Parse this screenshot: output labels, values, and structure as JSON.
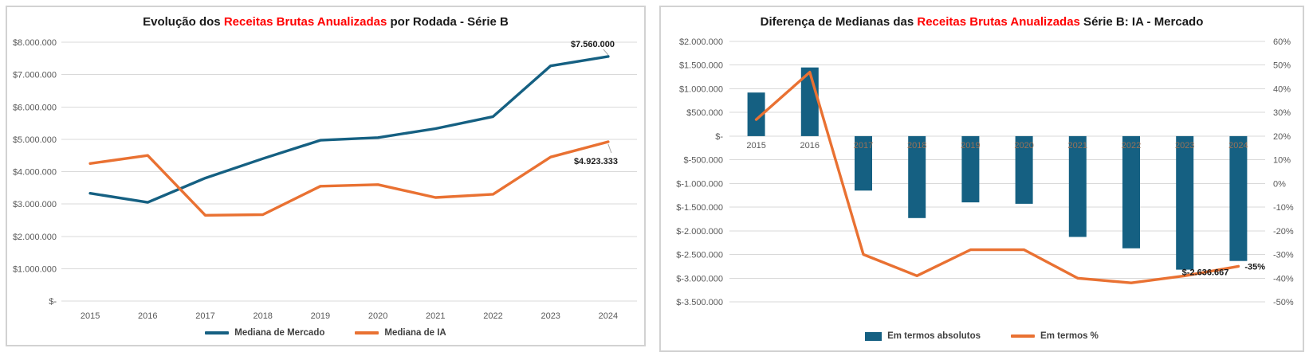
{
  "page": {
    "background": "#ffffff"
  },
  "colors": {
    "series_teal": "#156082",
    "series_orange": "#E97132",
    "title_highlight_red": "#ff0000",
    "title_text": "#1a1a1a",
    "axis_text": "#595959",
    "gridline": "#d9d9d9",
    "panel_border": "#d2d2d2",
    "data_label_text": "#1a1a1a",
    "year_label_over_bar": "#9a7257",
    "leader_line": "#a6a6a6"
  },
  "chart_data": [
    {
      "type": "line",
      "title": {
        "pre": "Evolução dos ",
        "highlight": "Receitas Brutas Anualizadas",
        "post": " por Rodada - Série B"
      },
      "categories": [
        "2015",
        "2016",
        "2017",
        "2018",
        "2019",
        "2020",
        "2021",
        "2022",
        "2023",
        "2024"
      ],
      "series": [
        {
          "name": "Mediana de Mercado",
          "color": "#156082",
          "values": [
            3330000,
            3050000,
            3800000,
            4400000,
            4970000,
            5050000,
            5330000,
            5700000,
            7270000,
            7560000
          ],
          "end_label": "$7.560.000"
        },
        {
          "name": "Mediana de IA",
          "color": "#E97132",
          "values": [
            4250000,
            4500000,
            2650000,
            2670000,
            3550000,
            3600000,
            3200000,
            3300000,
            4450000,
            4923333
          ],
          "end_label": "$4.923.333"
        }
      ],
      "ylim": [
        0,
        8000000
      ],
      "yticklabels": [
        "$8.000.000",
        "$7.000.000",
        "$6.000.000",
        "$5.000.000",
        "$4.000.000",
        "$3.000.000",
        "$2.000.000",
        "$1.000.000",
        "$-"
      ],
      "grid": true,
      "legend_position": "bottom"
    },
    {
      "type": "bar+line",
      "title": {
        "pre": "Diferença de Medianas das ",
        "highlight": "Receitas Brutas Anualizadas",
        "post": " Série B: IA - Mercado"
      },
      "categories": [
        "2015",
        "2016",
        "2017",
        "2018",
        "2019",
        "2020",
        "2021",
        "2022",
        "2023",
        "2024"
      ],
      "bar_series": {
        "name": "Em termos absolutos",
        "color": "#156082",
        "axis": "left",
        "values": [
          920000,
          1450000,
          -1150000,
          -1730000,
          -1400000,
          -1430000,
          -2130000,
          -2370000,
          -2820000,
          -2636667
        ],
        "end_label": "$-2.636.667"
      },
      "line_series": {
        "name": "Em termos %",
        "color": "#E97132",
        "axis": "right",
        "values": [
          27,
          47,
          -30,
          -39,
          -28,
          -28,
          -40,
          -42,
          -39,
          -35
        ],
        "end_label": "-35%"
      },
      "left_axis": {
        "lim": [
          -3500000,
          2000000
        ],
        "ticklabels": [
          "$2.000.000",
          "$1.500.000",
          "$1.000.000",
          "$500.000",
          "$-",
          "$-500.000",
          "$-1.000.000",
          "$-1.500.000",
          "$-2.000.000",
          "$-2.500.000",
          "$-3.000.000",
          "$-3.500.000"
        ]
      },
      "right_axis": {
        "lim": [
          -50,
          60
        ],
        "ticklabels": [
          "60%",
          "50%",
          "40%",
          "30%",
          "20%",
          "10%",
          "0%",
          "-10%",
          "-20%",
          "-30%",
          "-40%",
          "-50%"
        ]
      },
      "grid": true,
      "legend_position": "bottom"
    }
  ]
}
